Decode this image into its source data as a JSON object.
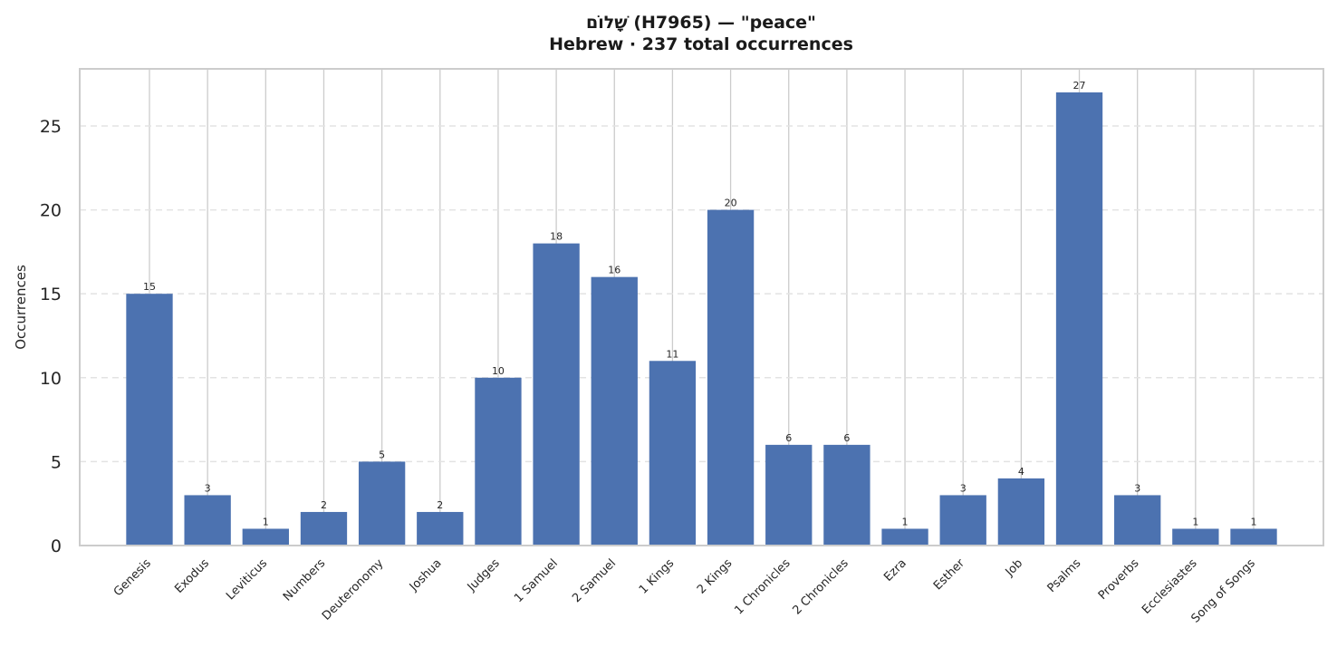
{
  "chart_data": {
    "type": "bar",
    "title_line1": "שָׁלוֹם (H7965)  —  \"peace\"",
    "title_line2": "Hebrew · 237 total occurrences",
    "xlabel": "",
    "ylabel": "Occurrences",
    "ylim": [
      0,
      28.4
    ],
    "yticks": [
      0,
      5,
      10,
      15,
      20,
      25
    ],
    "grid": "y-dashed",
    "bar_color": "#4c72b0",
    "categories": [
      "Genesis",
      "Exodus",
      "Leviticus",
      "Numbers",
      "Deuteronomy",
      "Joshua",
      "Judges",
      "1 Samuel",
      "2 Samuel",
      "1 Kings",
      "2 Kings",
      "1 Chronicles",
      "2 Chronicles",
      "Ezra",
      "Esther",
      "Job",
      "Psalms",
      "Proverbs",
      "Ecclesiastes",
      "Song of Songs"
    ],
    "values": [
      15,
      3,
      1,
      2,
      5,
      2,
      10,
      18,
      16,
      11,
      20,
      6,
      6,
      1,
      3,
      4,
      27,
      3,
      1,
      1
    ]
  }
}
